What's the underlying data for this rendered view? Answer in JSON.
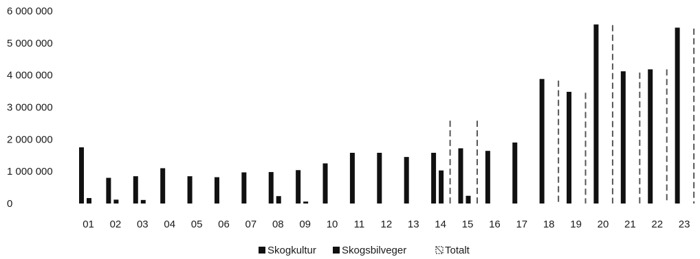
{
  "chart_data": {
    "type": "bar",
    "title": "",
    "xlabel": "",
    "ylabel": "",
    "ylim": [
      0,
      6000000
    ],
    "grid": false,
    "legend_position": "bottom",
    "y_ticks": [
      0,
      1000000,
      2000000,
      3000000,
      4000000,
      5000000,
      6000000
    ],
    "y_tick_labels": [
      "0",
      "1 000 000",
      "2 000 000",
      "3 000 000",
      "4 000 000",
      "5 000 000",
      "6 000 000"
    ],
    "categories": [
      "01",
      "02",
      "03",
      "04",
      "05",
      "06",
      "07",
      "08",
      "09",
      "10",
      "11",
      "12",
      "13",
      "14",
      "15",
      "16",
      "17",
      "18",
      "19",
      "20",
      "21",
      "22",
      "23"
    ],
    "series": [
      {
        "name": "Skogkultur",
        "color": "#111111",
        "pattern": "solid",
        "values": [
          1750000,
          800000,
          850000,
          1100000,
          850000,
          820000,
          970000,
          980000,
          1040000,
          1250000,
          1580000,
          1580000,
          1450000,
          1580000,
          1720000,
          1640000,
          1900000,
          3880000,
          3480000,
          5580000,
          4120000,
          4180000,
          5480000
        ]
      },
      {
        "name": "Skogsbilveger",
        "color": "#111111",
        "pattern": "solid",
        "values": [
          170000,
          120000,
          110000,
          0,
          0,
          0,
          0,
          230000,
          60000,
          0,
          0,
          0,
          0,
          1030000,
          240000,
          0,
          0,
          0,
          0,
          0,
          0,
          0,
          0
        ]
      },
      {
        "name": "Totalt",
        "color": "#555555",
        "pattern": "dashed",
        "values": [
          0,
          0,
          0,
          0,
          0,
          0,
          0,
          0,
          0,
          0,
          0,
          0,
          0,
          2580000,
          2580000,
          0,
          0,
          3830000,
          3450000,
          5560000,
          4080000,
          4180000,
          5450000
        ]
      }
    ]
  }
}
